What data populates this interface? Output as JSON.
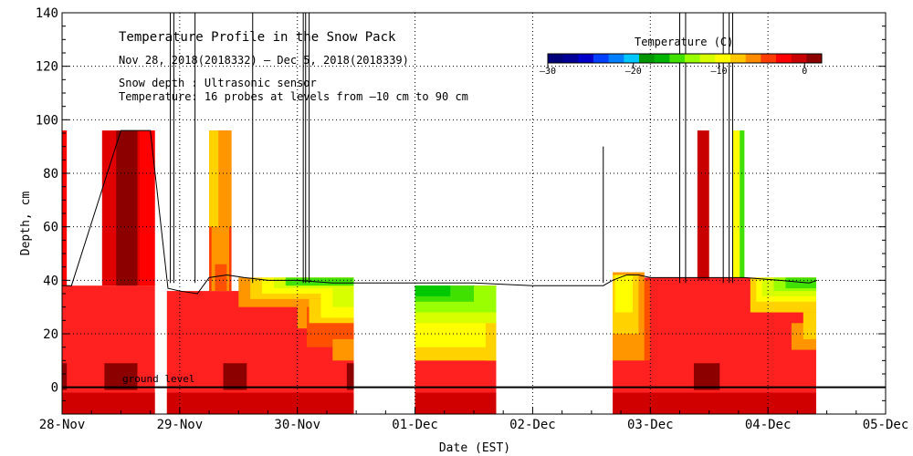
{
  "chart_data": {
    "type": "heatmap",
    "title": "Temperature Profile in the Snow Pack",
    "subtitle": "Nov 28, 2018(2018332) – Dec  5, 2018(2018339)",
    "notes": [
      "Snow depth : Ultrasonic sensor",
      "Temperature: 16 probes at levels from –10 cm to 90 cm"
    ],
    "ground_label": "ground level",
    "xlabel": "Date (EST)",
    "ylabel": "Depth, cm",
    "x_ticks": [
      "28-Nov",
      "29-Nov",
      "30-Nov",
      "01-Dec",
      "02-Dec",
      "03-Dec",
      "04-Dec",
      "05-Dec"
    ],
    "xlim_days": [
      0,
      7
    ],
    "ylim": [
      -10,
      140
    ],
    "y_ticks": [
      0,
      20,
      40,
      60,
      80,
      100,
      120,
      140
    ],
    "grid": true,
    "colorbar": {
      "title": "Temperature (C)",
      "range": [
        -30,
        2
      ],
      "tick_labels": [
        "–30",
        "–20",
        "–10",
        "0"
      ],
      "tick_values": [
        -30,
        -20,
        -10,
        0
      ],
      "colors": [
        "#00007a",
        "#000096",
        "#0000c8",
        "#0040ff",
        "#0080ff",
        "#00c8ff",
        "#009600",
        "#00b400",
        "#40e000",
        "#9aff00",
        "#d8ff00",
        "#ffff00",
        "#ffc800",
        "#ff8c00",
        "#ff3c00",
        "#ff0000",
        "#c80000",
        "#8c0000"
      ]
    },
    "temperature_bands": [
      {
        "temp": -1,
        "color": "#ff0000"
      },
      {
        "temp": -2,
        "color": "#ff5000"
      },
      {
        "temp": -3,
        "color": "#ff9600"
      },
      {
        "temp": -4,
        "color": "#ffd200"
      },
      {
        "temp": -5,
        "color": "#ffff00"
      },
      {
        "temp": -6,
        "color": "#d8ff00"
      },
      {
        "temp": -7,
        "color": "#9aff00"
      },
      {
        "temp": -8,
        "color": "#40e000"
      },
      {
        "temp": -9,
        "color": "#00c800"
      },
      {
        "temp": 0,
        "color": "#c80000"
      },
      {
        "temp": 1,
        "color": "#8c0000"
      }
    ],
    "snow_depth_series": {
      "name": "Snow depth",
      "points": [
        [
          0,
          38
        ],
        [
          0.08,
          38
        ],
        [
          0.5,
          96
        ],
        [
          0.75,
          96
        ],
        [
          0.9,
          37
        ],
        [
          1.0,
          36
        ],
        [
          1.15,
          35
        ],
        [
          1.25,
          41
        ],
        [
          1.4,
          42
        ],
        [
          1.55,
          41
        ],
        [
          1.75,
          40
        ],
        [
          2.0,
          40
        ],
        [
          2.3,
          39
        ],
        [
          2.5,
          39
        ],
        [
          3.0,
          39
        ],
        [
          3.5,
          39
        ],
        [
          4.0,
          38
        ],
        [
          4.6,
          38
        ],
        [
          4.68,
          40
        ],
        [
          4.8,
          42
        ],
        [
          4.9,
          42
        ],
        [
          5.0,
          41
        ],
        [
          5.5,
          41
        ],
        [
          5.8,
          41
        ],
        [
          6.1,
          40
        ],
        [
          6.35,
          39
        ],
        [
          6.42,
          40
        ]
      ]
    }
  }
}
